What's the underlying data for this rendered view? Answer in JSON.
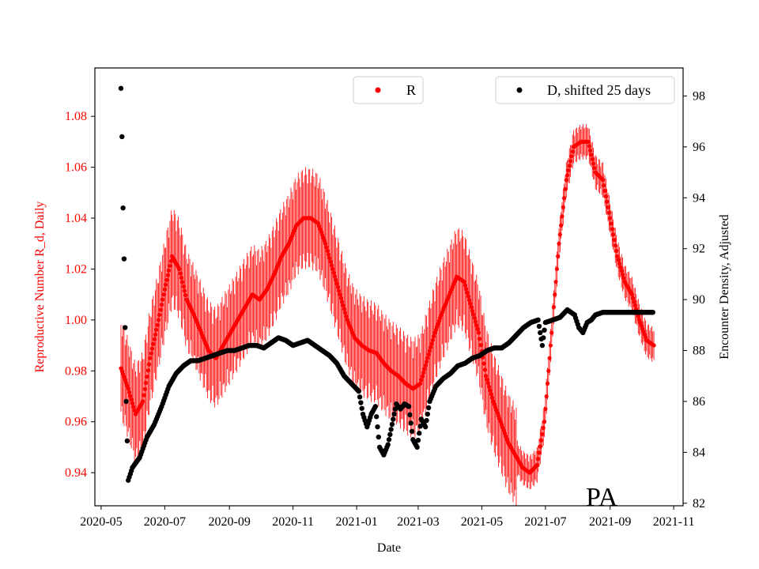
{
  "chart_data": {
    "type": "scatter",
    "xlabel": "Date",
    "ylabel_left": "Reproductive Number R_d, Daily",
    "ylabel_right": "Encounter Density, Adjusted",
    "annotation": "PA",
    "legend": [
      {
        "label": "R",
        "color": "#ff0000",
        "placement": "upper-center"
      },
      {
        "label": "D, shifted 25 days",
        "color": "#000000",
        "placement": "upper-right"
      }
    ],
    "x_ticks": [
      "2020-05",
      "2020-07",
      "2020-09",
      "2020-11",
      "2021-01",
      "2021-03",
      "2021-05",
      "2021-07",
      "2021-09",
      "2021-11"
    ],
    "xlim": [
      "2020-04-25",
      "2021-11-10"
    ],
    "y_left_ticks": [
      "0.94",
      "0.96",
      "0.98",
      "1.00",
      "1.02",
      "1.04",
      "1.06",
      "1.08"
    ],
    "ylim_left": [
      0.927,
      1.099
    ],
    "y_right_ticks": [
      "82",
      "84",
      "86",
      "88",
      "90",
      "92",
      "94",
      "96",
      "98"
    ],
    "ylim_right": [
      81.9,
      99.1
    ],
    "colors": {
      "R": "#ff0000",
      "D": "#000000"
    },
    "R_series": {
      "name": "R",
      "marker": "dot-with-daily-range-bars",
      "points": [
        [
          "2020-05-20",
          0.981
        ],
        [
          "2020-05-27",
          0.973
        ],
        [
          "2020-06-03",
          0.963
        ],
        [
          "2020-06-10",
          0.968
        ],
        [
          "2020-06-17",
          0.985
        ],
        [
          "2020-06-24",
          0.998
        ],
        [
          "2020-07-01",
          1.012
        ],
        [
          "2020-07-08",
          1.025
        ],
        [
          "2020-07-15",
          1.02
        ],
        [
          "2020-07-22",
          1.008
        ],
        [
          "2020-07-29",
          1.002
        ],
        [
          "2020-08-05",
          0.995
        ],
        [
          "2020-08-12",
          0.988
        ],
        [
          "2020-08-19",
          0.985
        ],
        [
          "2020-08-26",
          0.99
        ],
        [
          "2020-09-02",
          0.995
        ],
        [
          "2020-09-09",
          1.0
        ],
        [
          "2020-09-16",
          1.005
        ],
        [
          "2020-09-23",
          1.01
        ],
        [
          "2020-09-30",
          1.008
        ],
        [
          "2020-10-07",
          1.012
        ],
        [
          "2020-10-14",
          1.018
        ],
        [
          "2020-10-21",
          1.025
        ],
        [
          "2020-10-28",
          1.03
        ],
        [
          "2020-11-04",
          1.037
        ],
        [
          "2020-11-11",
          1.04
        ],
        [
          "2020-11-18",
          1.04
        ],
        [
          "2020-11-25",
          1.038
        ],
        [
          "2020-12-02",
          1.03
        ],
        [
          "2020-12-09",
          1.02
        ],
        [
          "2020-12-16",
          1.01
        ],
        [
          "2020-12-23",
          1.0
        ],
        [
          "2020-12-30",
          0.993
        ],
        [
          "2021-01-06",
          0.99
        ],
        [
          "2021-01-13",
          0.988
        ],
        [
          "2021-01-20",
          0.987
        ],
        [
          "2021-01-27",
          0.983
        ],
        [
          "2021-02-03",
          0.98
        ],
        [
          "2021-02-10",
          0.978
        ],
        [
          "2021-02-17",
          0.975
        ],
        [
          "2021-02-24",
          0.973
        ],
        [
          "2021-03-03",
          0.975
        ],
        [
          "2021-03-10",
          0.985
        ],
        [
          "2021-03-17",
          0.995
        ],
        [
          "2021-03-24",
          1.003
        ],
        [
          "2021-03-31",
          1.01
        ],
        [
          "2021-04-07",
          1.017
        ],
        [
          "2021-04-14",
          1.015
        ],
        [
          "2021-04-21",
          1.005
        ],
        [
          "2021-04-28",
          0.995
        ],
        [
          "2021-05-05",
          0.978
        ],
        [
          "2021-05-12",
          0.968
        ],
        [
          "2021-05-19",
          0.96
        ],
        [
          "2021-05-26",
          0.952
        ],
        [
          "2021-06-02",
          0.947
        ],
        [
          "2021-06-09",
          0.942
        ],
        [
          "2021-06-16",
          0.94
        ],
        [
          "2021-06-23",
          0.943
        ],
        [
          "2021-06-30",
          0.96
        ],
        [
          "2021-07-07",
          0.995
        ],
        [
          "2021-07-14",
          1.03
        ],
        [
          "2021-07-21",
          1.055
        ],
        [
          "2021-07-28",
          1.068
        ],
        [
          "2021-08-04",
          1.07
        ],
        [
          "2021-08-11",
          1.07
        ],
        [
          "2021-08-18",
          1.058
        ],
        [
          "2021-08-25",
          1.055
        ],
        [
          "2021-09-01",
          1.04
        ],
        [
          "2021-09-08",
          1.025
        ],
        [
          "2021-09-15",
          1.015
        ],
        [
          "2021-09-22",
          1.01
        ],
        [
          "2021-09-29",
          1.0
        ],
        [
          "2021-10-06",
          0.992
        ],
        [
          "2021-10-13",
          0.99
        ]
      ]
    },
    "D_series": {
      "name": "D, shifted 25 days",
      "points": [
        [
          "2020-05-20",
          98.3
        ],
        [
          "2020-05-21",
          96.4
        ],
        [
          "2020-05-22",
          93.6
        ],
        [
          "2020-05-23",
          91.6
        ],
        [
          "2020-05-24",
          88.9
        ],
        [
          "2020-05-25",
          86.0
        ],
        [
          "2020-05-27",
          82.9
        ],
        [
          "2020-05-31",
          83.4
        ],
        [
          "2020-06-07",
          83.8
        ],
        [
          "2020-06-14",
          84.6
        ],
        [
          "2020-06-21",
          85.1
        ],
        [
          "2020-06-28",
          85.8
        ],
        [
          "2020-07-05",
          86.6
        ],
        [
          "2020-07-12",
          87.1
        ],
        [
          "2020-07-19",
          87.4
        ],
        [
          "2020-07-26",
          87.6
        ],
        [
          "2020-08-02",
          87.6
        ],
        [
          "2020-08-09",
          87.7
        ],
        [
          "2020-08-16",
          87.8
        ],
        [
          "2020-08-23",
          87.9
        ],
        [
          "2020-08-30",
          88.0
        ],
        [
          "2020-09-06",
          88.0
        ],
        [
          "2020-09-13",
          88.1
        ],
        [
          "2020-09-20",
          88.2
        ],
        [
          "2020-09-27",
          88.2
        ],
        [
          "2020-10-04",
          88.1
        ],
        [
          "2020-10-11",
          88.3
        ],
        [
          "2020-10-18",
          88.5
        ],
        [
          "2020-10-25",
          88.4
        ],
        [
          "2020-11-01",
          88.2
        ],
        [
          "2020-11-08",
          88.3
        ],
        [
          "2020-11-15",
          88.4
        ],
        [
          "2020-11-22",
          88.2
        ],
        [
          "2020-11-29",
          88.0
        ],
        [
          "2020-12-06",
          87.8
        ],
        [
          "2020-12-13",
          87.5
        ],
        [
          "2020-12-20",
          87.0
        ],
        [
          "2020-12-27",
          86.7
        ],
        [
          "2021-01-03",
          86.4
        ],
        [
          "2021-01-07",
          85.5
        ],
        [
          "2021-01-11",
          85.0
        ],
        [
          "2021-01-15",
          85.5
        ],
        [
          "2021-01-19",
          85.8
        ],
        [
          "2021-01-23",
          84.2
        ],
        [
          "2021-01-27",
          83.9
        ],
        [
          "2021-01-31",
          84.3
        ],
        [
          "2021-02-04",
          85.1
        ],
        [
          "2021-02-08",
          85.9
        ],
        [
          "2021-02-12",
          85.7
        ],
        [
          "2021-02-16",
          85.9
        ],
        [
          "2021-02-20",
          85.8
        ],
        [
          "2021-02-24",
          84.5
        ],
        [
          "2021-02-28",
          84.2
        ],
        [
          "2021-03-04",
          85.3
        ],
        [
          "2021-03-08",
          85.0
        ],
        [
          "2021-03-12",
          86.0
        ],
        [
          "2021-03-18",
          86.6
        ],
        [
          "2021-03-25",
          86.9
        ],
        [
          "2021-04-01",
          87.1
        ],
        [
          "2021-04-08",
          87.4
        ],
        [
          "2021-04-15",
          87.5
        ],
        [
          "2021-04-22",
          87.7
        ],
        [
          "2021-04-29",
          87.8
        ],
        [
          "2021-05-06",
          88.0
        ],
        [
          "2021-05-13",
          88.1
        ],
        [
          "2021-05-20",
          88.1
        ],
        [
          "2021-05-27",
          88.3
        ],
        [
          "2021-06-03",
          88.6
        ],
        [
          "2021-06-10",
          88.9
        ],
        [
          "2021-06-17",
          89.1
        ],
        [
          "2021-06-24",
          89.2
        ],
        [
          "2021-06-28",
          88.2
        ],
        [
          "2021-07-01",
          89.1
        ],
        [
          "2021-07-08",
          89.2
        ],
        [
          "2021-07-15",
          89.3
        ],
        [
          "2021-07-22",
          89.6
        ],
        [
          "2021-07-29",
          89.4
        ],
        [
          "2021-08-02",
          88.9
        ],
        [
          "2021-08-06",
          88.7
        ],
        [
          "2021-08-10",
          89.1
        ],
        [
          "2021-08-14",
          89.2
        ],
        [
          "2021-08-18",
          89.4
        ],
        [
          "2021-08-25",
          89.5
        ],
        [
          "2021-09-08",
          89.5
        ],
        [
          "2021-09-22",
          89.5
        ],
        [
          "2021-10-06",
          89.5
        ],
        [
          "2021-10-12",
          89.5
        ]
      ]
    }
  }
}
